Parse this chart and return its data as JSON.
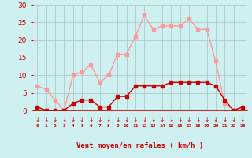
{
  "hours": [
    0,
    1,
    2,
    3,
    4,
    5,
    6,
    7,
    8,
    9,
    10,
    11,
    12,
    13,
    14,
    15,
    16,
    17,
    18,
    19,
    20,
    21,
    22,
    23
  ],
  "wind_avg": [
    1,
    0,
    0,
    0,
    2,
    3,
    3,
    1,
    1,
    4,
    4,
    7,
    7,
    7,
    7,
    8,
    8,
    8,
    8,
    8,
    7,
    3,
    0,
    1
  ],
  "wind_gust": [
    7,
    6,
    3,
    0,
    10,
    11,
    13,
    8,
    10,
    16,
    16,
    21,
    27,
    23,
    24,
    24,
    24,
    26,
    23,
    23,
    14,
    2,
    0,
    1
  ],
  "bg_color": "#cff0f0",
  "grid_color": "#b0c8c8",
  "avg_color": "#cc0000",
  "gust_color": "#ff9999",
  "xlabel": "Vent moyen/en rafales ( km/h )",
  "xlabel_color": "#cc0000",
  "tick_color": "#cc0000",
  "spine_color": "#cc0000",
  "ylim": [
    0,
    30
  ],
  "yticks": [
    0,
    5,
    10,
    15,
    20,
    25,
    30
  ],
  "arrow_color": "#cc0000",
  "line_width": 1.0,
  "marker_size": 2.5,
  "marker_style": "s"
}
